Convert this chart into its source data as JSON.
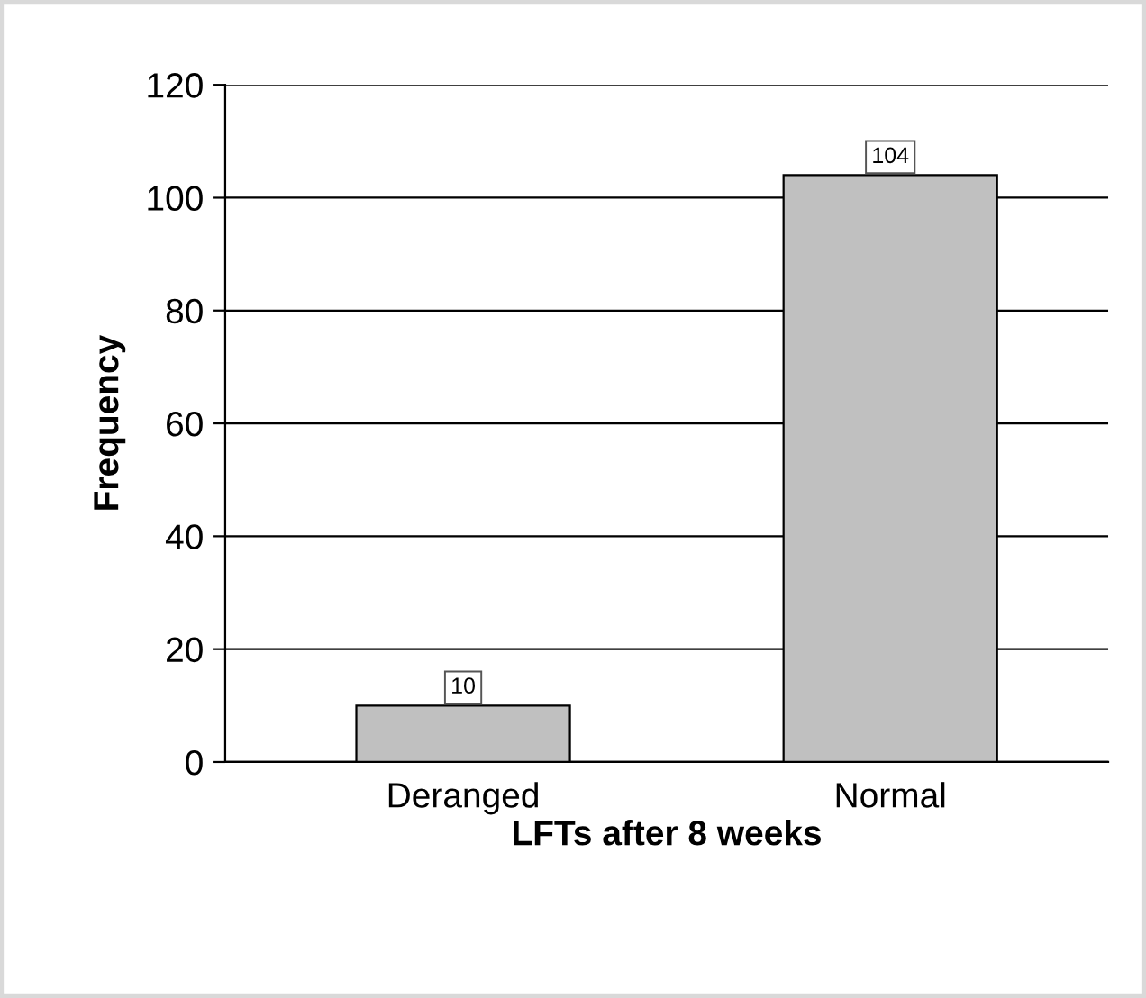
{
  "chart_data": {
    "type": "bar",
    "categories": [
      "Deranged",
      "Normal"
    ],
    "values": [
      10,
      104
    ],
    "color": "#c0c0c0",
    "xlabel": "LFTs after 8 weeks",
    "ylabel": "Frequency",
    "ylim": [
      0,
      120
    ],
    "yticks": [
      0,
      20,
      40,
      60,
      80,
      100,
      120
    ],
    "grid": "y",
    "data_labels": true,
    "legend": false
  }
}
